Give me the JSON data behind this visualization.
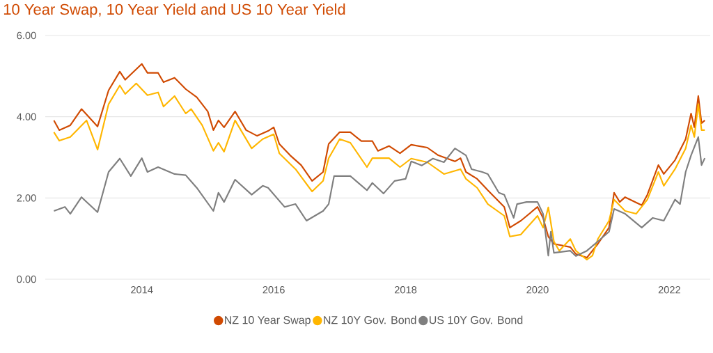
{
  "chart_data": {
    "type": "line",
    "title": "10 Year Swap, 10 Year Yield and US 10 Year Yield",
    "xlim": [
      "2012-07-15",
      "2022-08-15"
    ],
    "xticks": [
      {
        "value": "2014-01-01",
        "label": "2014"
      },
      {
        "value": "2016-01-01",
        "label": "2016"
      },
      {
        "value": "2018-01-01",
        "label": "2018"
      },
      {
        "value": "2020-01-01",
        "label": "2020"
      },
      {
        "value": "2022-01-01",
        "label": "2022"
      }
    ],
    "ylim": [
      0,
      6
    ],
    "yticks": [
      {
        "value": 0,
        "label": "0.00"
      },
      {
        "value": 2,
        "label": "2.00"
      },
      {
        "value": 4,
        "label": "4.00"
      },
      {
        "value": 6,
        "label": "6.00"
      }
    ],
    "grid": "y",
    "legend": "bottom",
    "marker": "none",
    "line_style": "solid",
    "series": [
      {
        "name": "NZ 10 Year Swap",
        "color": "#d04a02",
        "x": [
          "2012-09-01",
          "2012-10-01",
          "2012-12-01",
          "2013-02-01",
          "2013-05-01",
          "2013-07-01",
          "2013-09-01",
          "2013-10-01",
          "2014-01-01",
          "2014-02-01",
          "2014-04-01",
          "2014-05-01",
          "2014-07-01",
          "2014-09-01",
          "2014-11-01",
          "2015-01-01",
          "2015-02-01",
          "2015-03-01",
          "2015-04-01",
          "2015-06-01",
          "2015-08-01",
          "2015-10-01",
          "2015-12-01",
          "2016-01-01",
          "2016-02-01",
          "2016-04-01",
          "2016-06-01",
          "2016-08-01",
          "2016-10-01",
          "2016-11-01",
          "2017-01-01",
          "2017-03-01",
          "2017-05-01",
          "2017-07-01",
          "2017-08-01",
          "2017-10-01",
          "2017-12-01",
          "2018-02-01",
          "2018-05-01",
          "2018-07-01",
          "2018-10-01",
          "2018-11-01",
          "2018-12-01",
          "2019-02-01",
          "2019-04-01",
          "2019-07-01",
          "2019-08-01",
          "2019-10-01",
          "2020-01-01",
          "2020-02-01",
          "2020-03-01",
          "2020-04-01",
          "2020-07-01",
          "2020-08-01",
          "2020-10-01",
          "2020-12-01",
          "2021-02-01",
          "2021-03-01",
          "2021-04-01",
          "2021-05-01",
          "2021-08-01",
          "2021-09-01",
          "2021-11-01",
          "2021-12-01",
          "2022-02-01",
          "2022-04-01",
          "2022-05-01",
          "2022-05-19",
          "2022-06-10",
          "2022-06-28",
          "2022-07-16"
        ],
        "values": [
          3.91,
          3.67,
          3.79,
          4.19,
          3.76,
          4.65,
          5.11,
          4.91,
          5.3,
          5.08,
          5.08,
          4.85,
          4.96,
          4.68,
          4.48,
          4.13,
          3.67,
          3.91,
          3.74,
          4.13,
          3.67,
          3.53,
          3.65,
          3.74,
          3.33,
          3.05,
          2.81,
          2.42,
          2.64,
          3.33,
          3.62,
          3.62,
          3.4,
          3.4,
          3.16,
          3.28,
          3.1,
          3.31,
          3.24,
          3.05,
          2.9,
          2.98,
          2.64,
          2.47,
          2.19,
          1.78,
          1.27,
          1.44,
          1.78,
          1.51,
          1.05,
          0.87,
          0.79,
          0.62,
          0.53,
          0.87,
          1.27,
          2.13,
          1.9,
          2.02,
          1.82,
          2.08,
          2.81,
          2.59,
          2.93,
          3.45,
          4.08,
          3.74,
          4.51,
          3.84,
          3.91
        ]
      },
      {
        "name": "NZ 10Y Gov. Bond",
        "color": "#ffb600",
        "x": [
          "2012-09-01",
          "2012-10-01",
          "2012-12-01",
          "2013-03-01",
          "2013-05-01",
          "2013-07-01",
          "2013-09-01",
          "2013-10-01",
          "2013-12-01",
          "2014-02-01",
          "2014-04-01",
          "2014-05-01",
          "2014-07-01",
          "2014-09-01",
          "2014-10-01",
          "2014-12-01",
          "2015-02-01",
          "2015-03-01",
          "2015-04-01",
          "2015-06-01",
          "2015-09-01",
          "2015-11-01",
          "2016-01-01",
          "2016-02-01",
          "2016-05-01",
          "2016-08-01",
          "2016-10-01",
          "2016-11-01",
          "2017-01-01",
          "2017-03-01",
          "2017-06-01",
          "2017-07-01",
          "2017-10-01",
          "2017-12-01",
          "2018-02-01",
          "2018-05-01",
          "2018-08-01",
          "2018-11-01",
          "2018-12-01",
          "2019-02-01",
          "2019-04-01",
          "2019-07-01",
          "2019-08-01",
          "2019-10-01",
          "2020-01-01",
          "2020-02-01",
          "2020-03-01",
          "2020-04-01",
          "2020-05-01",
          "2020-07-01",
          "2020-08-01",
          "2020-10-01",
          "2020-11-01",
          "2020-12-01",
          "2021-02-01",
          "2021-03-01",
          "2021-05-01",
          "2021-07-01",
          "2021-09-01",
          "2021-11-01",
          "2021-12-01",
          "2022-02-01",
          "2022-04-01",
          "2022-05-01",
          "2022-05-19",
          "2022-06-10",
          "2022-06-28",
          "2022-07-16"
        ],
        "values": [
          3.62,
          3.41,
          3.5,
          3.91,
          3.19,
          4.31,
          4.77,
          4.56,
          4.82,
          4.53,
          4.6,
          4.25,
          4.51,
          4.08,
          4.19,
          3.79,
          3.16,
          3.36,
          3.14,
          3.91,
          3.22,
          3.45,
          3.57,
          3.1,
          2.71,
          2.16,
          2.42,
          2.98,
          3.45,
          3.36,
          2.76,
          2.98,
          2.98,
          2.76,
          2.97,
          2.88,
          2.59,
          2.71,
          2.47,
          2.25,
          1.85,
          1.56,
          1.05,
          1.1,
          1.56,
          1.27,
          1.77,
          0.93,
          0.7,
          0.99,
          0.7,
          0.48,
          0.58,
          0.99,
          1.44,
          1.96,
          1.68,
          1.61,
          1.96,
          2.64,
          2.3,
          2.71,
          3.22,
          3.79,
          3.5,
          4.31,
          3.67,
          3.67
        ]
      },
      {
        "name": "US 10Y Gov. Bond",
        "color": "#7f7f7f",
        "x": [
          "2012-09-01",
          "2012-11-01",
          "2012-12-01",
          "2013-02-01",
          "2013-05-01",
          "2013-07-01",
          "2013-09-01",
          "2013-11-01",
          "2014-01-01",
          "2014-02-01",
          "2014-04-01",
          "2014-07-01",
          "2014-09-01",
          "2014-11-01",
          "2015-02-01",
          "2015-03-01",
          "2015-04-01",
          "2015-06-01",
          "2015-09-01",
          "2015-11-01",
          "2015-12-01",
          "2016-03-01",
          "2016-05-01",
          "2016-07-01",
          "2016-10-01",
          "2016-11-01",
          "2016-12-01",
          "2017-03-01",
          "2017-06-01",
          "2017-07-01",
          "2017-09-01",
          "2017-11-01",
          "2018-01-01",
          "2018-02-01",
          "2018-04-01",
          "2018-06-01",
          "2018-08-01",
          "2018-10-01",
          "2018-12-01",
          "2019-01-01",
          "2019-03-01",
          "2019-04-01",
          "2019-06-01",
          "2019-07-01",
          "2019-08-22",
          "2019-09-10",
          "2019-11-01",
          "2020-01-01",
          "2020-02-01",
          "2020-03-01",
          "2020-03-15",
          "2020-04-01",
          "2020-07-01",
          "2020-08-01",
          "2020-10-01",
          "2020-12-01",
          "2021-02-01",
          "2021-03-01",
          "2021-05-01",
          "2021-08-01",
          "2021-10-01",
          "2021-12-01",
          "2022-02-01",
          "2022-03-01",
          "2022-04-01",
          "2022-05-01",
          "2022-06-10",
          "2022-06-28",
          "2022-07-16"
        ],
        "values": [
          1.68,
          1.78,
          1.61,
          2.02,
          1.65,
          2.64,
          2.97,
          2.54,
          2.98,
          2.64,
          2.76,
          2.59,
          2.56,
          2.25,
          1.68,
          2.13,
          1.9,
          2.45,
          2.08,
          2.3,
          2.25,
          1.78,
          1.85,
          1.44,
          1.68,
          1.85,
          2.54,
          2.54,
          2.19,
          2.37,
          2.11,
          2.42,
          2.47,
          2.9,
          2.8,
          2.97,
          2.88,
          3.22,
          3.05,
          2.71,
          2.64,
          2.59,
          2.13,
          2.08,
          1.51,
          1.85,
          1.9,
          1.9,
          1.61,
          0.58,
          1.17,
          0.65,
          0.7,
          0.57,
          0.7,
          0.93,
          1.17,
          1.73,
          1.61,
          1.27,
          1.51,
          1.44,
          1.96,
          1.85,
          2.64,
          3.05,
          3.5,
          2.81,
          2.98
        ]
      }
    ]
  }
}
